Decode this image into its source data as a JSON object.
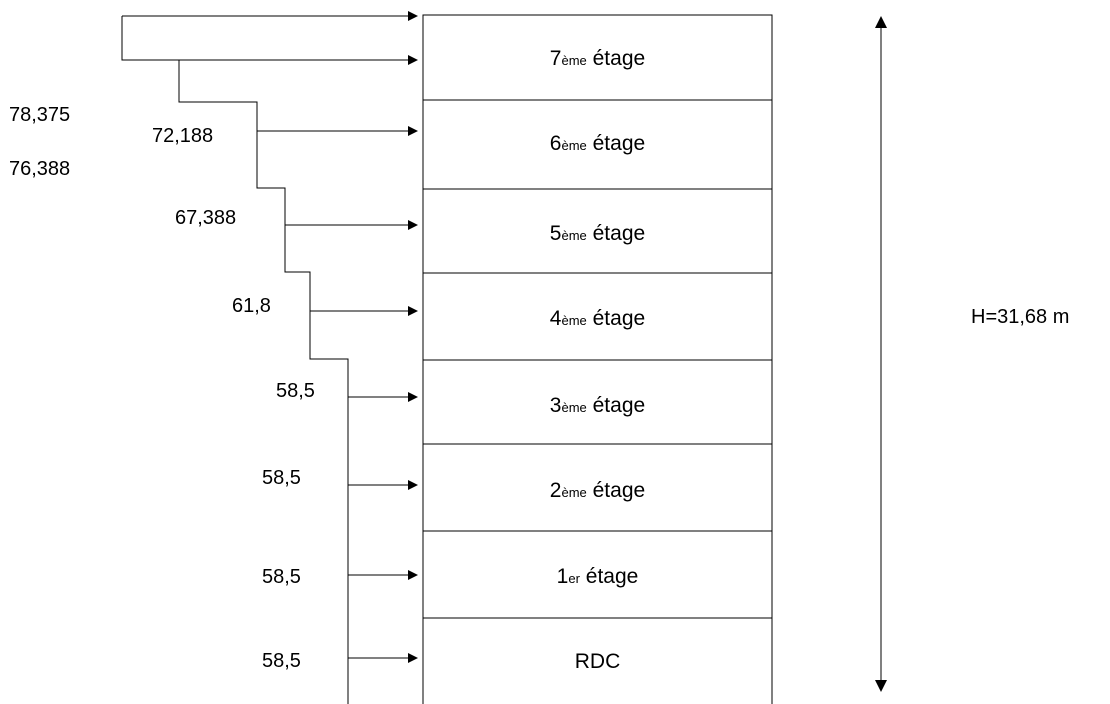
{
  "floors": [
    {
      "num": "7",
      "suffix": "ème",
      "word": "étage"
    },
    {
      "num": "6",
      "suffix": "ème",
      "word": "étage"
    },
    {
      "num": "5",
      "suffix": "ème",
      "word": "étage"
    },
    {
      "num": "4",
      "suffix": "ème",
      "word": "étage"
    },
    {
      "num": "3",
      "suffix": "ème",
      "word": "étage"
    },
    {
      "num": "2",
      "suffix": "ème",
      "word": "étage"
    },
    {
      "num": "1",
      "suffix": "er",
      "word": "étage"
    },
    {
      "num": "",
      "suffix": "",
      "word": "RDC"
    }
  ],
  "forces": {
    "top_1": "78,375",
    "top_2": "76,388",
    "f6": "72,188",
    "f5": "67,388",
    "f4": "61,8",
    "f3": "58,5",
    "f2": "58,5",
    "f1": "58,5",
    "f0": "58,5"
  },
  "height_label": "H=31,68 m"
}
